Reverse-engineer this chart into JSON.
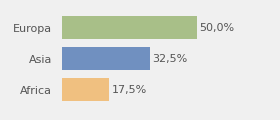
{
  "categories": [
    "Africa",
    "Asia",
    "Europa"
  ],
  "values": [
    17.5,
    32.5,
    50.0
  ],
  "labels": [
    "17,5%",
    "32,5%",
    "50,0%"
  ],
  "bar_colors": [
    "#f0c080",
    "#7090c0",
    "#a8bf88"
  ],
  "background_color": "#f0f0f0",
  "xlim": [
    0,
    68
  ],
  "label_fontsize": 8,
  "tick_fontsize": 8
}
